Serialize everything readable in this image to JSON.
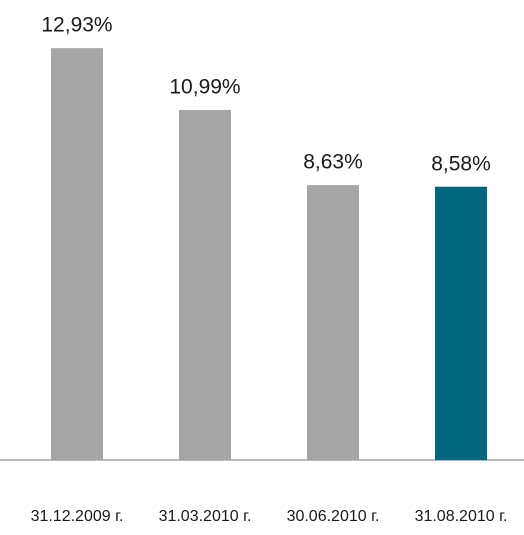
{
  "chart_data": {
    "type": "bar",
    "categories": [
      "31.12.2009 г.",
      "31.03.2010 г.",
      "30.06.2010 г.",
      "31.08.2010 г."
    ],
    "values": [
      12.93,
      10.99,
      8.63,
      8.58
    ],
    "value_labels": [
      "12,93%",
      "10,99%",
      "8,63%",
      "8,58%"
    ],
    "colors": [
      "#a6a6a6",
      "#a6a6a6",
      "#a6a6a6",
      "#006680"
    ],
    "ylim": [
      0,
      13.5
    ]
  }
}
